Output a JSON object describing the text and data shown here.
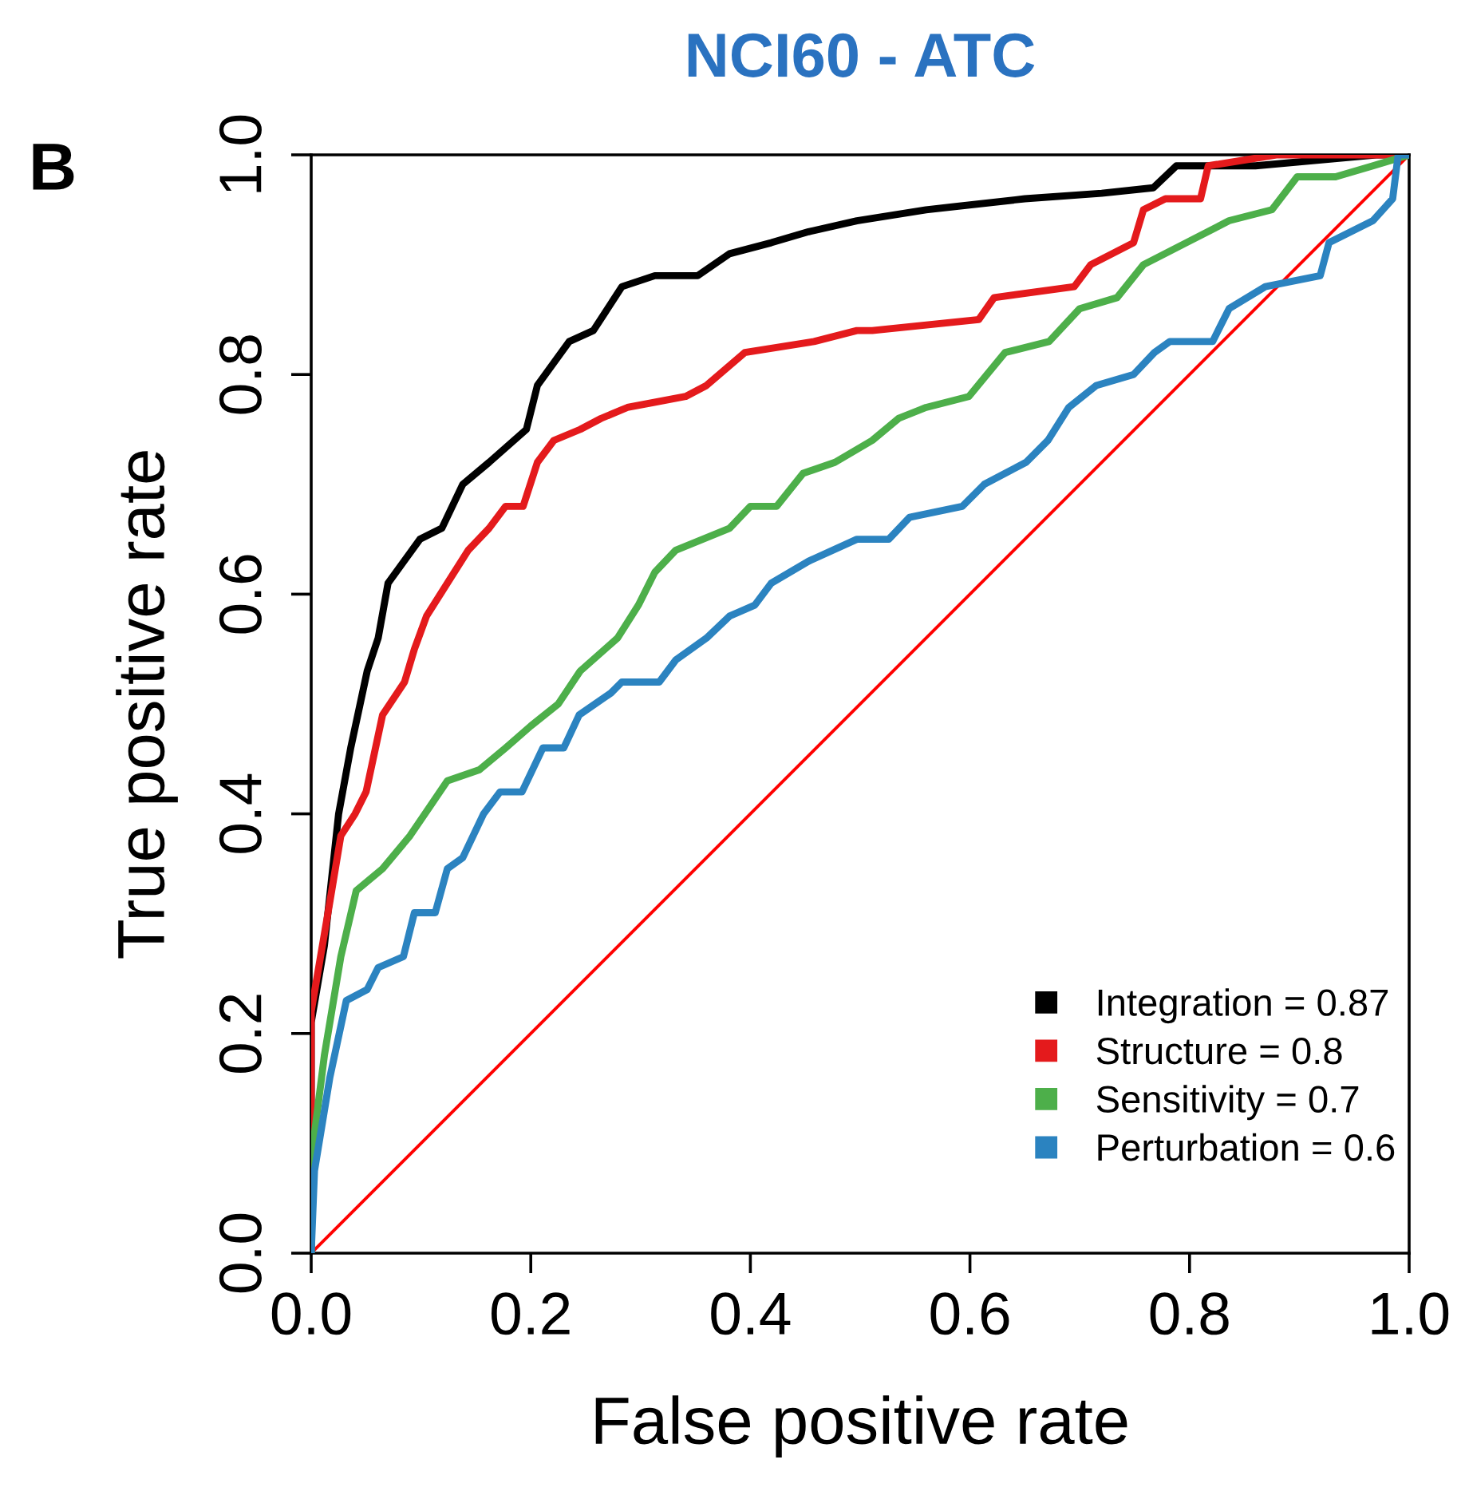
{
  "chart_data": {
    "type": "line",
    "title": "NCI60 - ATC",
    "xlabel": "False positive rate",
    "ylabel": "True positive rate",
    "annotations": [
      "B"
    ],
    "xlim": [
      0,
      1
    ],
    "ylim": [
      0,
      1
    ],
    "xticks": [
      {
        "value": 0,
        "label": "0.0"
      },
      {
        "value": 0.2,
        "label": "0.2"
      },
      {
        "value": 0.4,
        "label": "0.4"
      },
      {
        "value": 0.6,
        "label": "0.6"
      },
      {
        "value": 0.8,
        "label": "0.8"
      },
      {
        "value": 1,
        "label": "1.0"
      }
    ],
    "yticks": [
      {
        "value": 0,
        "label": "0.0"
      },
      {
        "value": 0.2,
        "label": "0.2"
      },
      {
        "value": 0.4,
        "label": "0.4"
      },
      {
        "value": 0.6,
        "label": "0.6"
      },
      {
        "value": 0.8,
        "label": "0.8"
      },
      {
        "value": 1,
        "label": "1.0"
      }
    ],
    "grid": false,
    "legend": "bottom right",
    "marker": "none",
    "line_style": "solid",
    "series": [
      {
        "name": "Integration = 0.87",
        "color": "#000000",
        "x": [
          0,
          0,
          0.012,
          0.025,
          0.036,
          0.051,
          0.061,
          0.07,
          0.099,
          0.119,
          0.138,
          0.162,
          0.196,
          0.206,
          0.235,
          0.257,
          0.283,
          0.313,
          0.352,
          0.381,
          0.419,
          0.453,
          0.497,
          0.56,
          0.65,
          0.72,
          0.767,
          0.788,
          0.86,
          0.97,
          1
        ],
        "values": [
          0,
          0.21,
          0.28,
          0.4,
          0.46,
          0.53,
          0.56,
          0.61,
          0.65,
          0.66,
          0.7,
          0.72,
          0.75,
          0.79,
          0.83,
          0.84,
          0.88,
          0.89,
          0.89,
          0.91,
          0.92,
          0.93,
          0.94,
          0.95,
          0.96,
          0.965,
          0.97,
          0.99,
          0.99,
          1,
          1
        ]
      },
      {
        "name": "Structure = 0.8",
        "color": "#e41a1c",
        "x": [
          0,
          0,
          0.017,
          0.027,
          0.04,
          0.05,
          0.065,
          0.085,
          0.094,
          0.105,
          0.124,
          0.143,
          0.162,
          0.177,
          0.193,
          0.206,
          0.221,
          0.245,
          0.264,
          0.288,
          0.341,
          0.36,
          0.395,
          0.458,
          0.497,
          0.511,
          0.608,
          0.622,
          0.695,
          0.71,
          0.749,
          0.758,
          0.778,
          0.81,
          0.817,
          0.879,
          1
        ],
        "values": [
          0,
          0.22,
          0.32,
          0.38,
          0.4,
          0.42,
          0.49,
          0.52,
          0.55,
          0.58,
          0.61,
          0.64,
          0.66,
          0.68,
          0.68,
          0.72,
          0.74,
          0.75,
          0.76,
          0.77,
          0.78,
          0.79,
          0.82,
          0.83,
          0.84,
          0.84,
          0.85,
          0.87,
          0.88,
          0.9,
          0.92,
          0.95,
          0.96,
          0.96,
          0.99,
          1,
          1
        ]
      },
      {
        "name": "Sensitivity = 0.7",
        "color": "#4daf4a",
        "x": [
          0,
          0,
          0.012,
          0.027,
          0.041,
          0.065,
          0.09,
          0.124,
          0.153,
          0.177,
          0.2,
          0.225,
          0.245,
          0.279,
          0.298,
          0.313,
          0.332,
          0.381,
          0.4,
          0.424,
          0.448,
          0.477,
          0.511,
          0.535,
          0.56,
          0.599,
          0.632,
          0.672,
          0.7,
          0.734,
          0.758,
          0.797,
          0.836,
          0.875,
          0.898,
          0.933,
          0.967,
          1
        ],
        "values": [
          0,
          0.085,
          0.18,
          0.27,
          0.33,
          0.35,
          0.38,
          0.43,
          0.44,
          0.46,
          0.48,
          0.5,
          0.53,
          0.56,
          0.59,
          0.62,
          0.64,
          0.66,
          0.68,
          0.68,
          0.71,
          0.72,
          0.74,
          0.76,
          0.77,
          0.78,
          0.82,
          0.83,
          0.86,
          0.87,
          0.9,
          0.92,
          0.94,
          0.95,
          0.98,
          0.98,
          0.99,
          1
        ]
      },
      {
        "name": "Perturbation = 0.6",
        "color": "#2b83c0",
        "x": [
          0,
          0.003,
          0.017,
          0.032,
          0.051,
          0.061,
          0.084,
          0.094,
          0.113,
          0.124,
          0.138,
          0.157,
          0.172,
          0.192,
          0.211,
          0.23,
          0.244,
          0.273,
          0.283,
          0.317,
          0.332,
          0.36,
          0.381,
          0.404,
          0.419,
          0.453,
          0.497,
          0.526,
          0.545,
          0.593,
          0.613,
          0.651,
          0.671,
          0.69,
          0.715,
          0.749,
          0.768,
          0.782,
          0.821,
          0.836,
          0.869,
          0.919,
          0.927,
          0.967,
          0.985,
          0.99,
          1
        ],
        "values": [
          0,
          0.075,
          0.16,
          0.23,
          0.24,
          0.26,
          0.27,
          0.31,
          0.31,
          0.35,
          0.36,
          0.4,
          0.42,
          0.42,
          0.46,
          0.46,
          0.49,
          0.51,
          0.52,
          0.52,
          0.54,
          0.56,
          0.58,
          0.59,
          0.61,
          0.63,
          0.65,
          0.65,
          0.67,
          0.68,
          0.7,
          0.72,
          0.74,
          0.77,
          0.79,
          0.8,
          0.82,
          0.83,
          0.83,
          0.86,
          0.88,
          0.89,
          0.92,
          0.94,
          0.96,
          1,
          1
        ]
      },
      {
        "color": "#ff0000",
        "x": [
          0,
          1
        ],
        "values": [
          0,
          1
        ]
      }
    ]
  }
}
